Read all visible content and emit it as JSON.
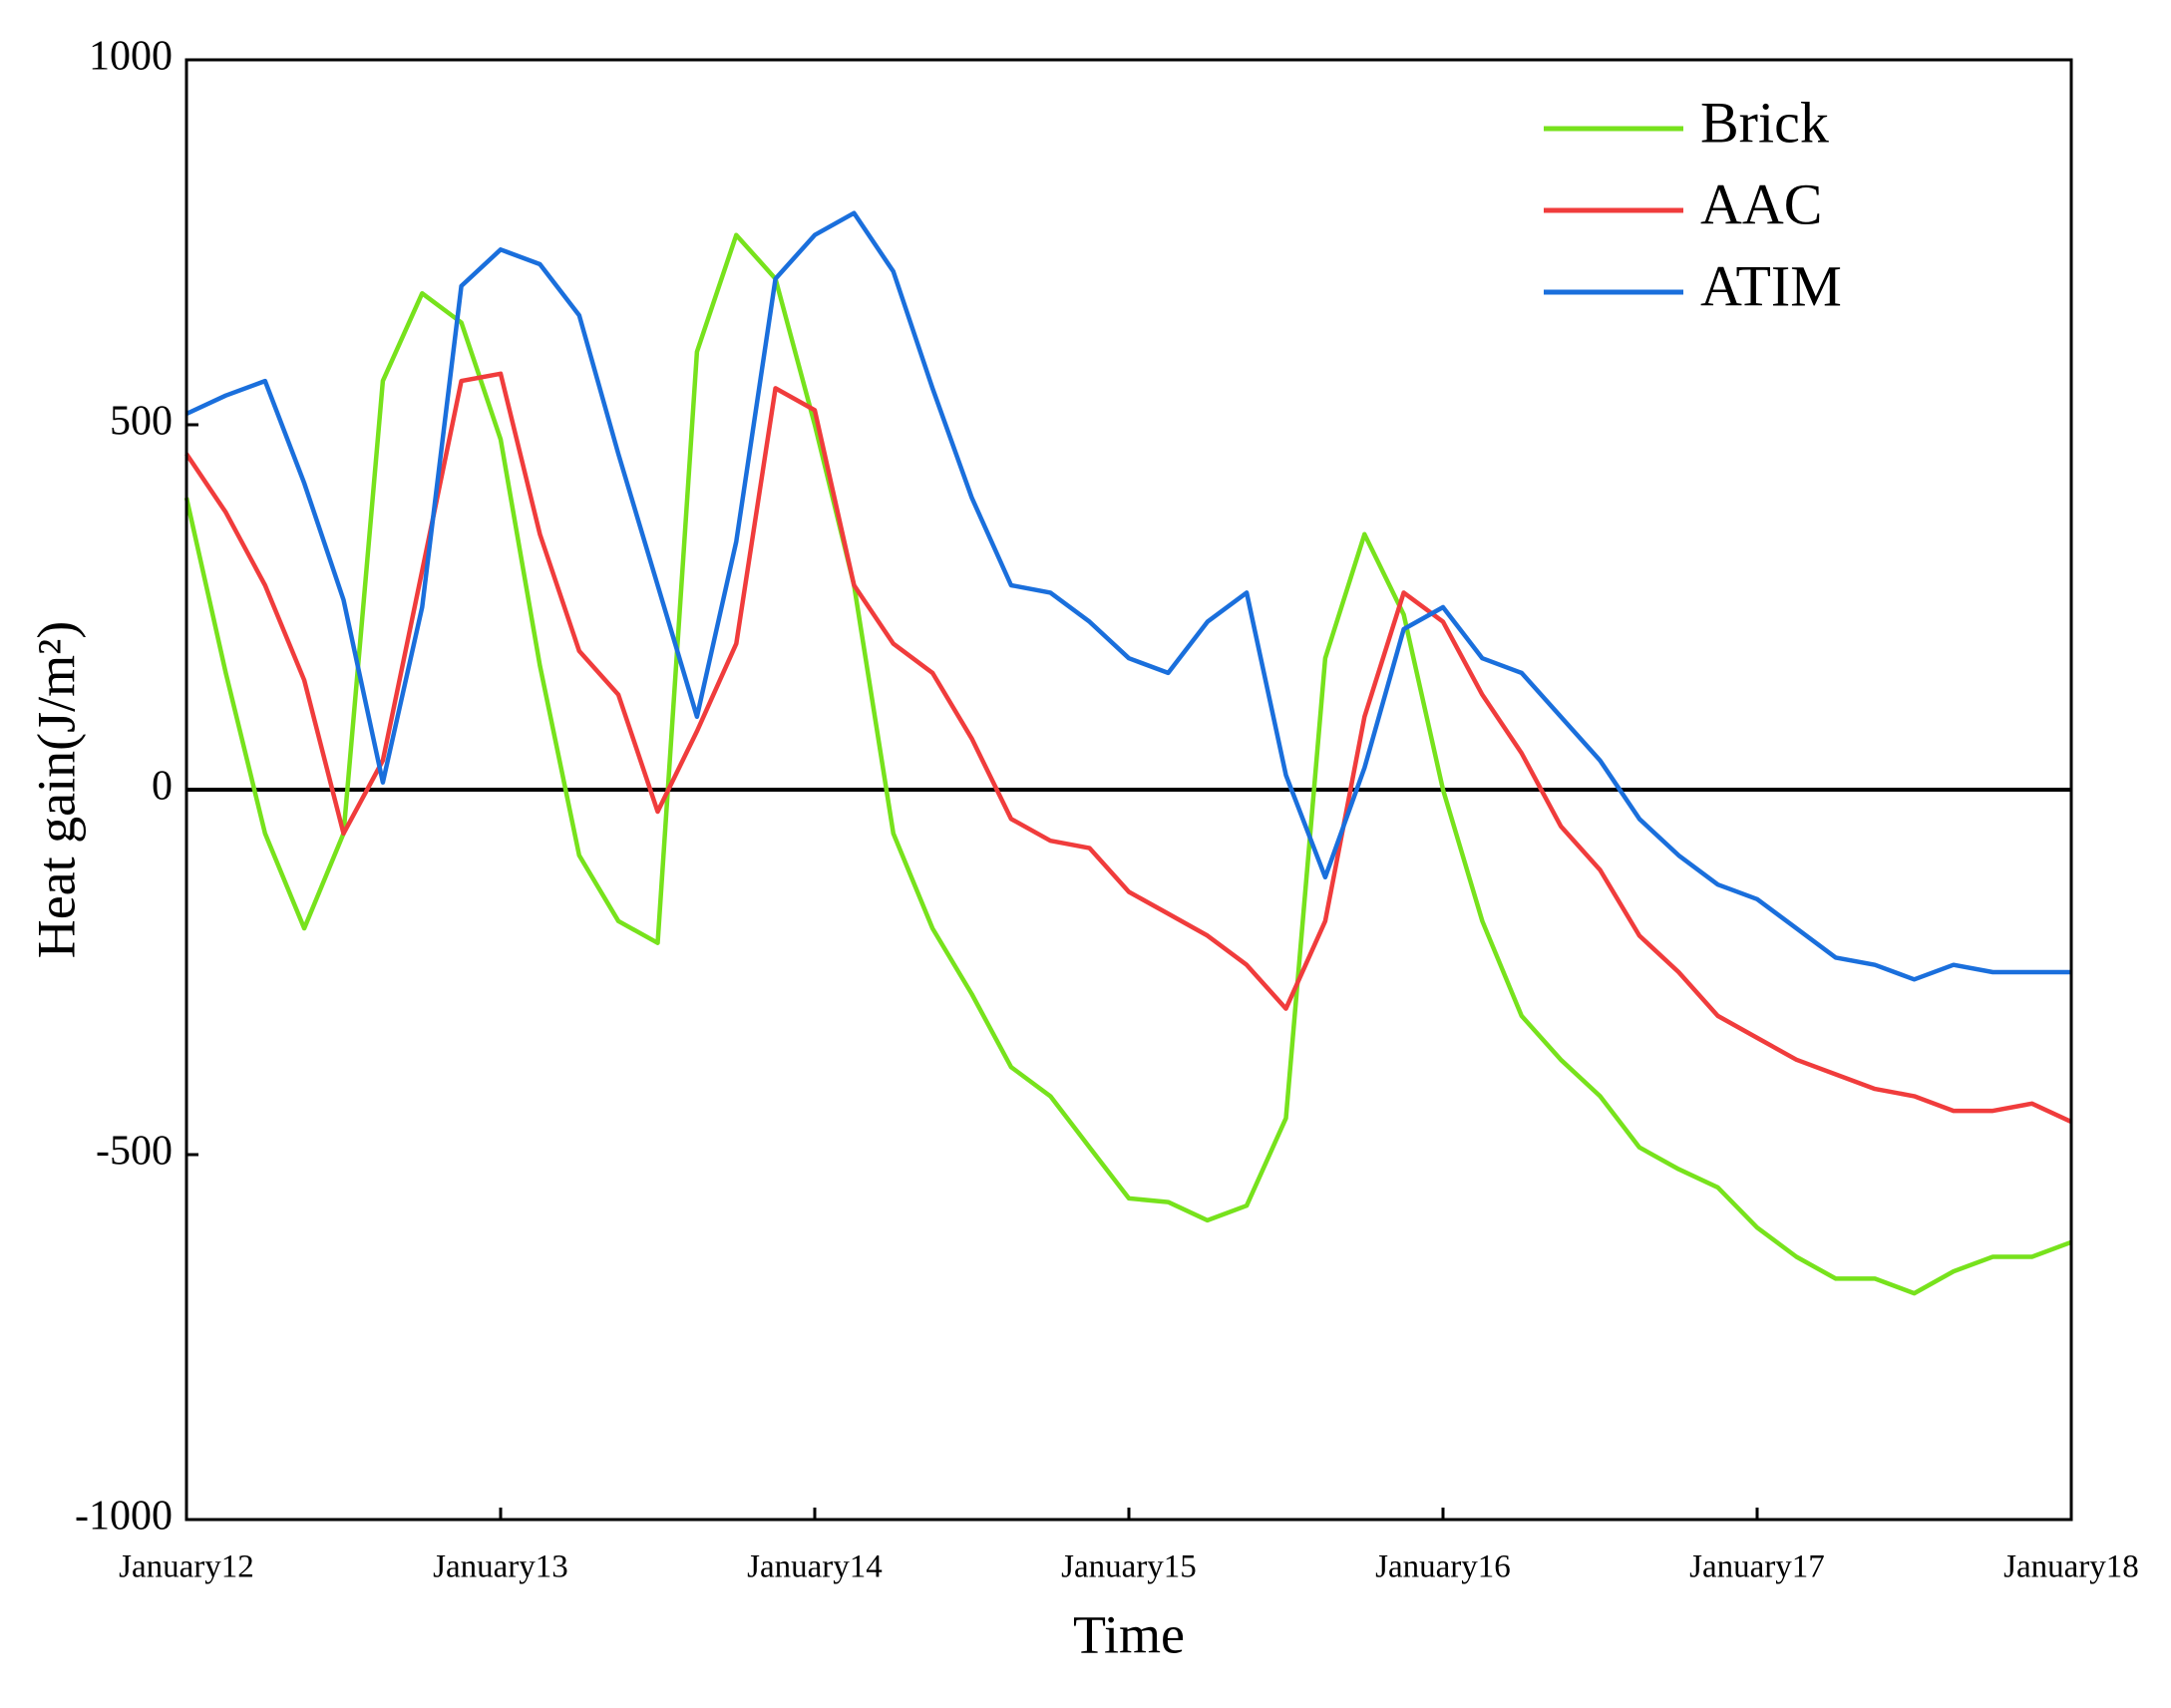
{
  "chart_data": {
    "type": "line",
    "xlabel": "Time",
    "ylabel": "Heat gain(J/m²)",
    "x": [
      12,
      12.125,
      12.25,
      12.375,
      12.5,
      12.625,
      12.75,
      12.875,
      13,
      13.125,
      13.25,
      13.375,
      13.5,
      13.625,
      13.75,
      13.875,
      14,
      14.125,
      14.25,
      14.375,
      14.5,
      14.625,
      14.75,
      14.875,
      15,
      15.125,
      15.25,
      15.375,
      15.5,
      15.625,
      15.75,
      15.875,
      16,
      16.125,
      16.25,
      16.375,
      16.5,
      16.625,
      16.75,
      16.875,
      17,
      17.125,
      17.25,
      17.375,
      17.5,
      17.625,
      17.75,
      17.875,
      18
    ],
    "series": [
      {
        "name": "Brick",
        "color": "#77e21c",
        "values": [
          400,
          160,
          -60,
          -190,
          -60,
          560,
          680,
          640,
          480,
          170,
          -90,
          -180,
          -210,
          600,
          760,
          700,
          500,
          280,
          -60,
          -190,
          -280,
          -380,
          -420,
          -490,
          -560,
          -565,
          -590,
          -570,
          -450,
          180,
          350,
          240,
          0,
          -180,
          -310,
          -370,
          -420,
          -490,
          -520,
          -545,
          -600,
          -640,
          -670,
          -670,
          -690,
          -660,
          -640,
          -640,
          -620
        ]
      },
      {
        "name": "AAC",
        "color": "#f03c3c",
        "values": [
          460,
          380,
          280,
          150,
          -60,
          40,
          300,
          560,
          570,
          350,
          190,
          130,
          -30,
          80,
          200,
          550,
          520,
          280,
          200,
          160,
          70,
          -40,
          -70,
          -80,
          -140,
          -170,
          -200,
          -240,
          -300,
          -180,
          100,
          270,
          230,
          130,
          50,
          -50,
          -110,
          -200,
          -250,
          -310,
          -340,
          -370,
          -390,
          -410,
          -420,
          -440,
          -440,
          -430,
          -455
        ]
      },
      {
        "name": "ATIM",
        "color": "#1a6fdc",
        "values": [
          515,
          540,
          560,
          420,
          260,
          10,
          250,
          690,
          740,
          720,
          650,
          460,
          280,
          100,
          340,
          700,
          760,
          790,
          710,
          550,
          400,
          280,
          270,
          230,
          180,
          160,
          230,
          270,
          20,
          -120,
          30,
          220,
          250,
          180,
          160,
          100,
          40,
          -40,
          -90,
          -130,
          -150,
          -190,
          -230,
          -240,
          -260,
          -240,
          -250,
          -250,
          -250
        ]
      }
    ],
    "xlim": [
      12,
      18
    ],
    "xticks": [
      {
        "value": 12,
        "label": "January12"
      },
      {
        "value": 13,
        "label": "January13"
      },
      {
        "value": 14,
        "label": "January14"
      },
      {
        "value": 15,
        "label": "January15"
      },
      {
        "value": 16,
        "label": "January16"
      },
      {
        "value": 17,
        "label": "January17"
      },
      {
        "value": 18,
        "label": "January18"
      }
    ],
    "ylim": [
      -1000,
      1000
    ],
    "yticks": [
      -1000,
      -500,
      0,
      500,
      1000
    ],
    "legend": "upper right"
  }
}
